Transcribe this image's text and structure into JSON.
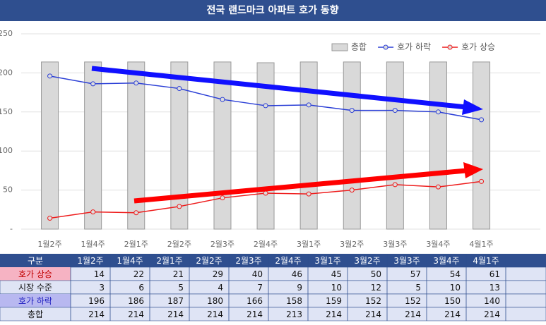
{
  "chart_data": {
    "type": "bar_line",
    "title": "전국 랜드마크 아파트 호가 동향",
    "categories": [
      "1월2주",
      "1월4주",
      "2월1주",
      "2월2주",
      "2월3주",
      "2월4주",
      "3월1주",
      "3월2주",
      "3월3주",
      "3월4주",
      "4월1주"
    ],
    "ylim": [
      0,
      250
    ],
    "yticks": [
      {
        "value": 0,
        "label": "-"
      },
      50,
      100,
      150,
      200,
      250
    ],
    "grid": true,
    "legend": "top-right",
    "series": [
      {
        "name": "총합",
        "type": "bar",
        "color": "#d9d9d9",
        "values": [
          214,
          214,
          214,
          214,
          214,
          213,
          214,
          214,
          214,
          214,
          214
        ]
      },
      {
        "name": "호가 하락",
        "type": "line",
        "color": "#2b3fd6",
        "values": [
          196,
          186,
          187,
          180,
          166,
          158,
          159,
          152,
          152,
          150,
          140
        ]
      },
      {
        "name": "호가 상승",
        "type": "line",
        "color": "#ee1c1c",
        "values": [
          14,
          22,
          21,
          29,
          40,
          46,
          45,
          50,
          57,
          54,
          61
        ]
      }
    ],
    "table": {
      "header": "구분",
      "rows": [
        {
          "name": "호가 상승",
          "values": [
            14,
            22,
            21,
            29,
            40,
            46,
            45,
            50,
            57,
            54,
            61
          ]
        },
        {
          "name": "시장 수준",
          "values": [
            3,
            6,
            5,
            4,
            7,
            9,
            10,
            12,
            5,
            10,
            13
          ]
        },
        {
          "name": "호가 하락",
          "values": [
            196,
            186,
            187,
            180,
            166,
            158,
            159,
            152,
            152,
            150,
            140
          ]
        },
        {
          "name": "총합",
          "values": [
            214,
            214,
            214,
            214,
            214,
            213,
            214,
            214,
            214,
            214,
            214
          ]
        }
      ]
    }
  }
}
